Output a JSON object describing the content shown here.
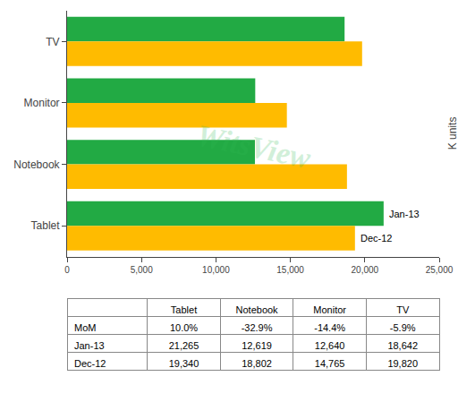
{
  "chart_data": [
    {
      "type": "bar",
      "orientation": "horizontal",
      "categories": [
        "TV",
        "Monitor",
        "Notebook",
        "Tablet"
      ],
      "series": [
        {
          "name": "Jan-13",
          "color": "#22aa44",
          "values": [
            18642,
            12640,
            12619,
            21265
          ]
        },
        {
          "name": "Dec-12",
          "color": "#ffbb00",
          "values": [
            19820,
            14765,
            18802,
            19340
          ]
        }
      ],
      "xlim": [
        0,
        25000
      ],
      "xticks": [
        0,
        {
          "value": 5000,
          "label": "5,000"
        },
        {
          "value": 10000,
          "label": "10,000"
        },
        {
          "value": 15000,
          "label": "15,000"
        },
        {
          "value": 20000,
          "label": "20,000"
        },
        {
          "value": 25000,
          "label": "25,000"
        }
      ],
      "ylabel": "K units",
      "grid": false,
      "annotations": [
        {
          "text": "WitsView",
          "color": "#33bb55"
        }
      ]
    },
    {
      "type": "table",
      "columns": [
        "Tablet",
        "Notebook",
        "Monitor",
        "TV"
      ],
      "rows": [
        {
          "name": "MoM",
          "values": [
            10.0,
            -32.9,
            -14.4,
            -5.9
          ],
          "value_labels": [
            "10.0%",
            "-32.9%",
            "-14.4%",
            "-5.9%"
          ]
        },
        {
          "name": "Jan-13",
          "values": [
            21265,
            12619,
            12640,
            18642
          ],
          "value_labels": [
            "21,265",
            "12,619",
            "12,640",
            "18,642"
          ]
        },
        {
          "name": "Dec-12",
          "values": [
            19340,
            18802,
            14765,
            19820
          ],
          "value_labels": [
            "19,340",
            "18,802",
            "14,765",
            "19,820"
          ]
        }
      ]
    }
  ]
}
